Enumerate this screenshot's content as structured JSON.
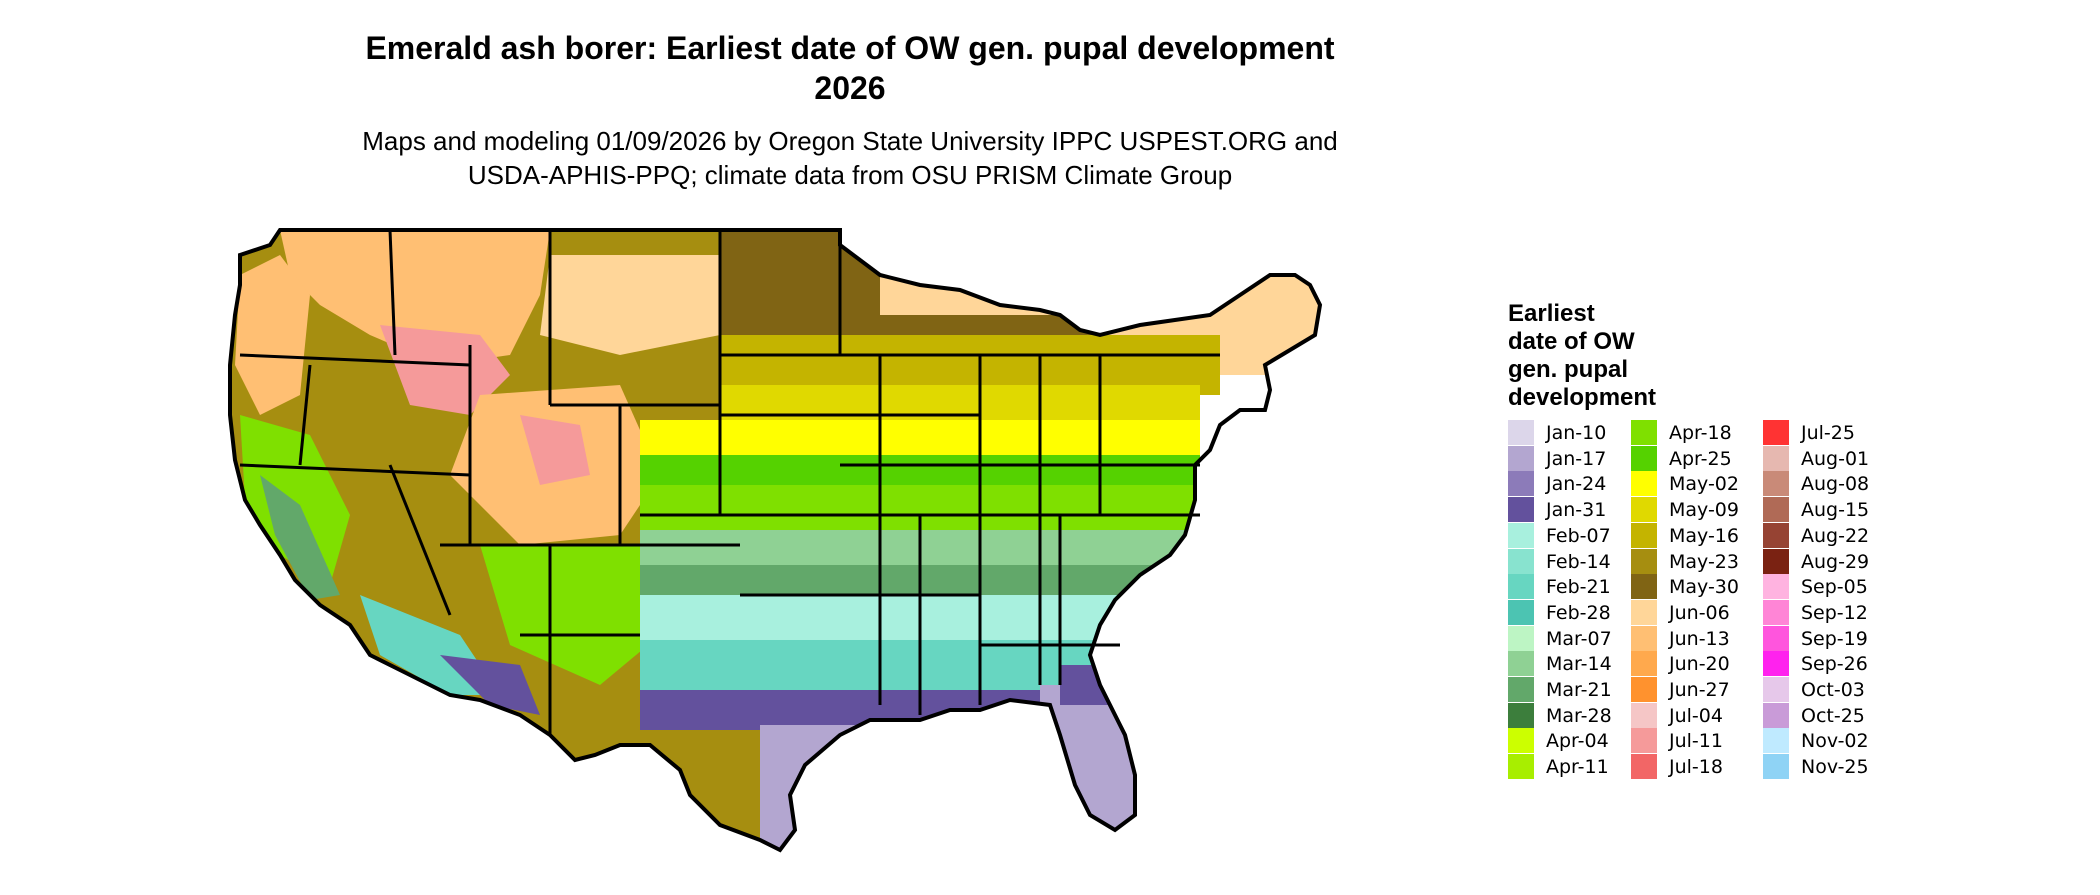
{
  "title": {
    "line1": "Emerald ash borer: Earliest date of OW gen. pupal development",
    "line2": "2026"
  },
  "subtitle": {
    "line1": "Maps and modeling 01/09/2026 by Oregon State University IPPC USPEST.ORG and",
    "line2": "USDA-APHIS-PPQ; climate data from OSU PRISM Climate Group"
  },
  "legend": {
    "title": "Earliest\ndate of OW\ngen. pupal\ndevelopment",
    "items": [
      {
        "label": "Jan-10",
        "color": "#dcd6ea"
      },
      {
        "label": "Jan-17",
        "color": "#b3a6d0"
      },
      {
        "label": "Jan-24",
        "color": "#8c7bb9"
      },
      {
        "label": "Jan-31",
        "color": "#63519d"
      },
      {
        "label": "Feb-07",
        "color": "#a8f0de"
      },
      {
        "label": "Feb-14",
        "color": "#88e3cf"
      },
      {
        "label": "Feb-21",
        "color": "#67d6c1"
      },
      {
        "label": "Feb-28",
        "color": "#4cc4b2"
      },
      {
        "label": "Mar-07",
        "color": "#bdf5c4"
      },
      {
        "label": "Mar-14",
        "color": "#8fd194"
      },
      {
        "label": "Mar-21",
        "color": "#62a86a"
      },
      {
        "label": "Mar-28",
        "color": "#3c7e3c"
      },
      {
        "label": "Apr-04",
        "color": "#ccff00"
      },
      {
        "label": "Apr-11",
        "color": "#a8ee00"
      },
      {
        "label": "Apr-18",
        "color": "#7fe000"
      },
      {
        "label": "Apr-25",
        "color": "#55d200"
      },
      {
        "label": "May-02",
        "color": "#ffff00"
      },
      {
        "label": "May-09",
        "color": "#e0d900"
      },
      {
        "label": "May-16",
        "color": "#c4b400"
      },
      {
        "label": "May-23",
        "color": "#a68e10"
      },
      {
        "label": "May-30",
        "color": "#806414"
      },
      {
        "label": "Jun-06",
        "color": "#ffd699"
      },
      {
        "label": "Jun-13",
        "color": "#ffbf73"
      },
      {
        "label": "Jun-20",
        "color": "#ffa94d"
      },
      {
        "label": "Jun-27",
        "color": "#ff922e"
      },
      {
        "label": "Jul-04",
        "color": "#f5c6c6"
      },
      {
        "label": "Jul-11",
        "color": "#f59a9a"
      },
      {
        "label": "Jul-18",
        "color": "#f26666"
      },
      {
        "label": "Jul-25",
        "color": "#ff3333"
      },
      {
        "label": "Aug-01",
        "color": "#e6b8b0"
      },
      {
        "label": "Aug-08",
        "color": "#c98a78"
      },
      {
        "label": "Aug-15",
        "color": "#b06a56"
      },
      {
        "label": "Aug-22",
        "color": "#964333"
      },
      {
        "label": "Aug-29",
        "color": "#7a2212"
      },
      {
        "label": "Sep-05",
        "color": "#ffb3e0"
      },
      {
        "label": "Sep-12",
        "color": "#ff85d6"
      },
      {
        "label": "Sep-19",
        "color": "#ff55dd"
      },
      {
        "label": "Sep-26",
        "color": "#ff22ee"
      },
      {
        "label": "Oct-03",
        "color": "#e6c8ea"
      },
      {
        "label": "Oct-25",
        "color": "#c99bd8"
      },
      {
        "label": "Nov-02",
        "color": "#bfeaff"
      },
      {
        "label": "Nov-25",
        "color": "#8fd3f5"
      }
    ]
  },
  "map": {
    "band_colors": {
      "south_florida": "#b3a6d0",
      "gulf_dark": "#63519d",
      "gulf_teal": "#67d6c1",
      "gulf_light": "#a8f0de",
      "deep_south_green": "#62a86a",
      "mid_south": "#8fd194",
      "tn_green": "#7fe000",
      "ky_green": "#55d200",
      "mid_yellow": "#ffff00",
      "corn_belt": "#e0d900",
      "upper_midwest": "#c4b400",
      "north_plains": "#806414",
      "mountain_orange": "#ffbf73",
      "mountain_tan": "#ffd699",
      "mountain_pink": "#f59a9a",
      "west_olive": "#a68e10",
      "desert": "#63519d"
    }
  }
}
